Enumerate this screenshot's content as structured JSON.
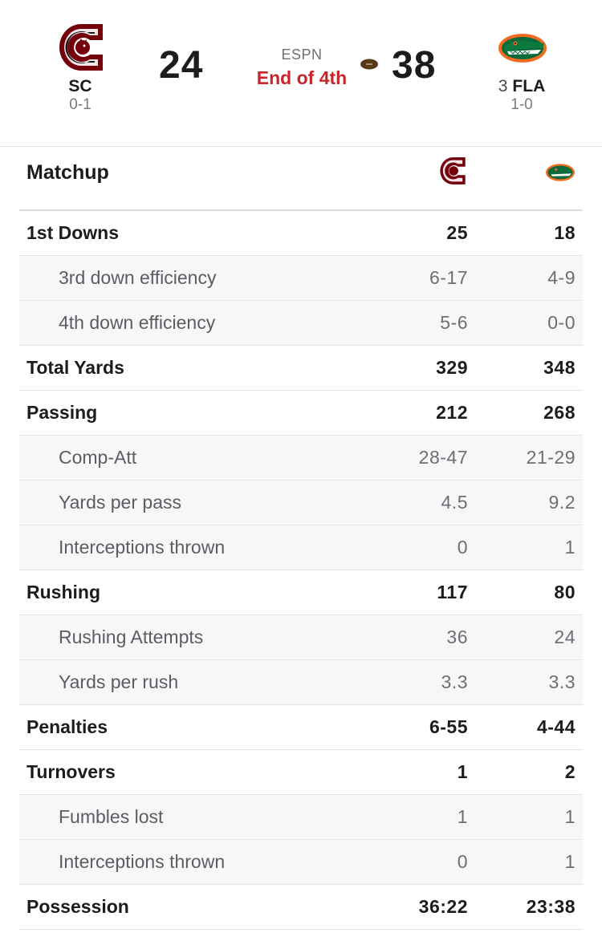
{
  "game": {
    "network": "ESPN",
    "status": "End of 4th",
    "away": {
      "abbr": "SC",
      "record": "0-1",
      "score": "24",
      "logo": "gamecock-logo",
      "color": "#73000a"
    },
    "home": {
      "abbr": "FLA",
      "rank": "3",
      "record": "1-0",
      "score": "38",
      "logo": "gator-logo",
      "color": "#0a6a3a"
    },
    "possession_icon": "football-icon",
    "status_color": "#c9252b"
  },
  "matchup": {
    "title": "Matchup",
    "rows": [
      {
        "label": "1st Downs",
        "away": "25",
        "home": "18",
        "type": "main"
      },
      {
        "label": "3rd down efficiency",
        "away": "6-17",
        "home": "4-9",
        "type": "sub"
      },
      {
        "label": "4th down efficiency",
        "away": "5-6",
        "home": "0-0",
        "type": "sub"
      },
      {
        "label": "Total Yards",
        "away": "329",
        "home": "348",
        "type": "main"
      },
      {
        "label": "Passing",
        "away": "212",
        "home": "268",
        "type": "main"
      },
      {
        "label": "Comp-Att",
        "away": "28-47",
        "home": "21-29",
        "type": "sub"
      },
      {
        "label": "Yards per pass",
        "away": "4.5",
        "home": "9.2",
        "type": "sub"
      },
      {
        "label": "Interceptions thrown",
        "away": "0",
        "home": "1",
        "type": "sub"
      },
      {
        "label": "Rushing",
        "away": "117",
        "home": "80",
        "type": "main"
      },
      {
        "label": "Rushing Attempts",
        "away": "36",
        "home": "24",
        "type": "sub"
      },
      {
        "label": "Yards per rush",
        "away": "3.3",
        "home": "3.3",
        "type": "sub"
      },
      {
        "label": "Penalties",
        "away": "6-55",
        "home": "4-44",
        "type": "main"
      },
      {
        "label": "Turnovers",
        "away": "1",
        "home": "2",
        "type": "main"
      },
      {
        "label": "Fumbles lost",
        "away": "1",
        "home": "1",
        "type": "sub"
      },
      {
        "label": "Interceptions thrown",
        "away": "0",
        "home": "1",
        "type": "sub"
      },
      {
        "label": "Possession",
        "away": "36:22",
        "home": "23:38",
        "type": "main"
      }
    ]
  }
}
